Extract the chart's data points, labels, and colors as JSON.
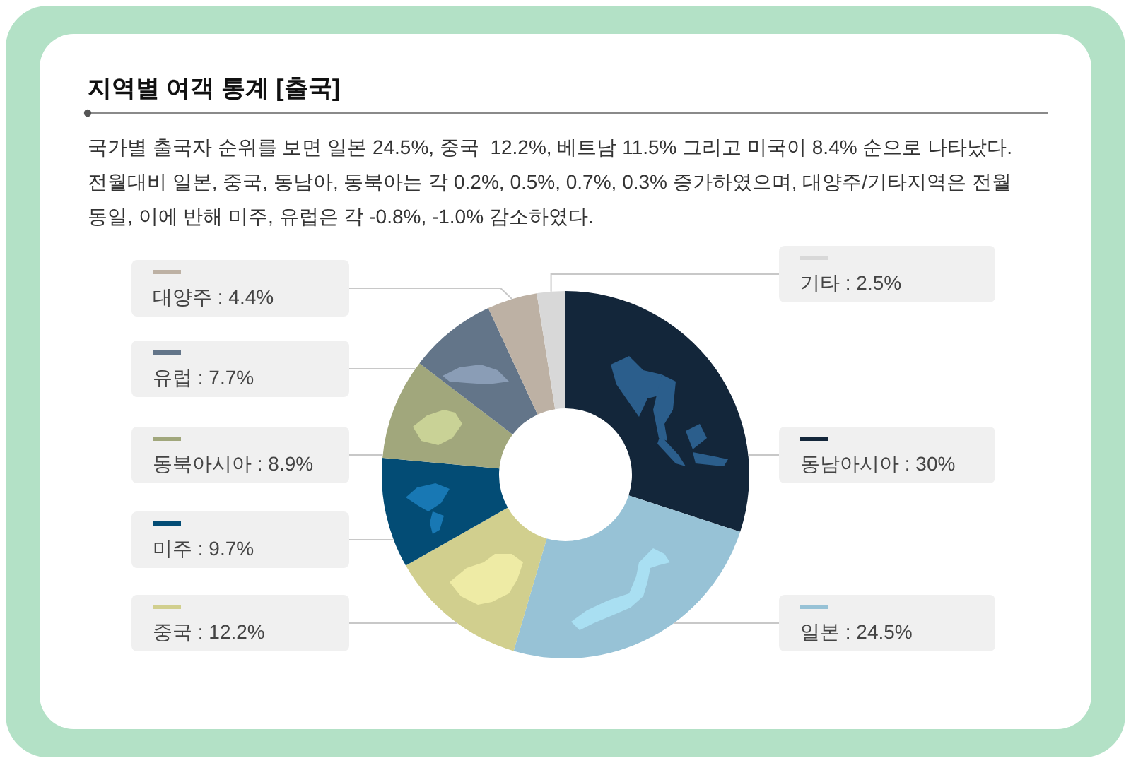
{
  "chart_data": {
    "type": "donut",
    "title": "지역별 여객 통계 [출국]",
    "subtitle": "국가별 출국자 순위를 보면 일본 24.5%, 중국  12.2%, 베트남 11.5% 그리고 미국이 8.4% 순으로 나타났다. 전월대비 일본, 중국, 동남아, 동북아는 각 0.2%, 0.5%, 0.7%, 0.3% 증가하였으며, 대양주/기타지역은 전월 동일, 이에 반해 미주, 유럽은 각 -0.8%, -1.0% 감소하였다.",
    "categories": [
      "동남아시아",
      "일본",
      "중국",
      "미주",
      "동북아시아",
      "유럽",
      "대양주",
      "기타"
    ],
    "values": [
      30,
      24.5,
      12.2,
      9.7,
      8.9,
      7.7,
      4.4,
      2.5
    ],
    "value_labels": [
      "30%",
      "24.5%",
      "12.2%",
      "9.7%",
      "8.9%",
      "7.7%",
      "4.4%",
      "2.5%"
    ],
    "colors": [
      "#13263a",
      "#97c2d6",
      "#d1cf8e",
      "#034c75",
      "#a1a77c",
      "#637589",
      "#bdb1a4",
      "#d8d8d8"
    ],
    "legend": "left"
  }
}
